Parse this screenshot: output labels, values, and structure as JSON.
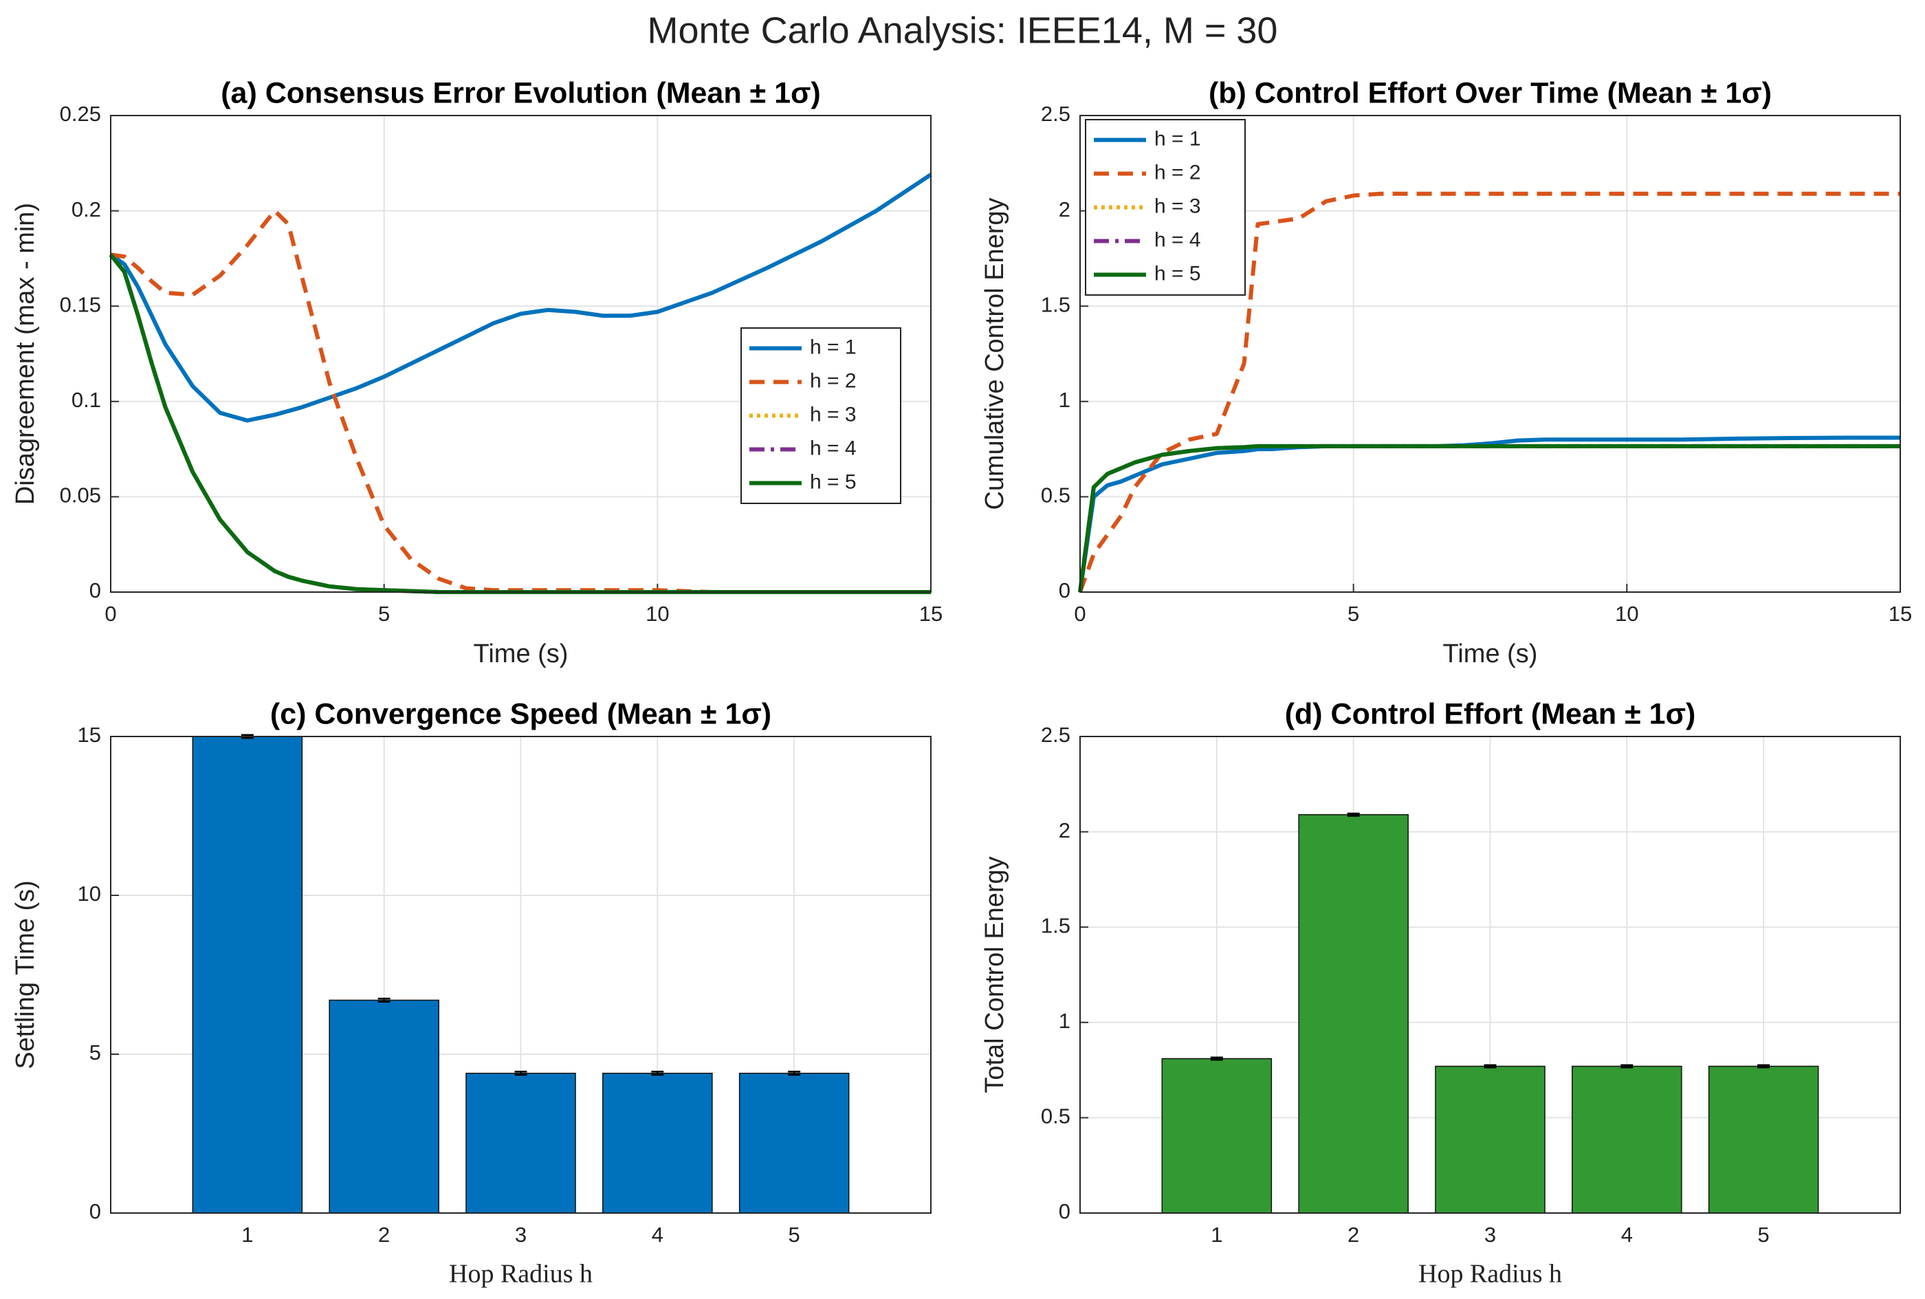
{
  "title": "Monte Carlo Analysis: IEEE14, M = 30",
  "chart_data": [
    {
      "type": "line",
      "title": "(a) Consensus Error Evolution (Mean ± 1σ)",
      "xlabel": "Time (s)",
      "ylabel": "Disagreement (max - min)",
      "x": [
        0,
        0.25,
        0.5,
        0.75,
        1,
        1.5,
        2,
        2.5,
        3,
        3.25,
        3.5,
        4,
        4.5,
        5,
        5.5,
        6,
        6.5,
        7,
        7.5,
        8,
        8.5,
        9,
        9.5,
        10,
        11,
        12,
        13,
        14,
        15
      ],
      "xlim": [
        0,
        15
      ],
      "xticks": [
        0,
        5,
        10,
        15
      ],
      "ylim": [
        0,
        0.25
      ],
      "yticks": [
        0,
        0.05,
        0.1,
        0.15,
        0.2,
        0.25
      ],
      "grid": true,
      "legend": "east",
      "series": [
        {
          "name": "h = 1",
          "color": "#0072bd",
          "style": "solid",
          "values": [
            0.177,
            0.172,
            0.16,
            0.145,
            0.13,
            0.108,
            0.094,
            0.09,
            0.093,
            0.095,
            0.097,
            0.102,
            0.107,
            0.113,
            0.12,
            0.127,
            0.134,
            0.141,
            0.146,
            0.148,
            0.147,
            0.145,
            0.145,
            0.147,
            0.157,
            0.17,
            0.184,
            0.2,
            0.219
          ]
        },
        {
          "name": "h = 2",
          "color": "#d95319",
          "style": "dashed",
          "values": [
            0.177,
            0.176,
            0.17,
            0.163,
            0.157,
            0.156,
            0.166,
            0.182,
            0.2,
            0.193,
            0.165,
            0.11,
            0.07,
            0.035,
            0.017,
            0.007,
            0.002,
            0.001,
            0.001,
            0.001,
            0.001,
            0.001,
            0.001,
            0.001,
            0,
            0,
            0,
            0,
            0
          ]
        },
        {
          "name": "h = 3",
          "color": "#edb120",
          "style": "dotted",
          "values": [
            0.177,
            0.168,
            0.145,
            0.12,
            0.097,
            0.063,
            0.038,
            0.021,
            0.011,
            0.008,
            0.006,
            0.003,
            0.0015,
            0.001,
            0.0005,
            0,
            0,
            0,
            0,
            0,
            0,
            0,
            0,
            0,
            0,
            0,
            0,
            0,
            0
          ]
        },
        {
          "name": "h = 4",
          "color": "#7e2f8e",
          "style": "dashdot",
          "values": [
            0.177,
            0.168,
            0.145,
            0.12,
            0.097,
            0.063,
            0.038,
            0.021,
            0.011,
            0.008,
            0.006,
            0.003,
            0.0015,
            0.001,
            0.0005,
            0,
            0,
            0,
            0,
            0,
            0,
            0,
            0,
            0,
            0,
            0,
            0,
            0,
            0
          ]
        },
        {
          "name": "h = 5",
          "color": "#0b6b12",
          "style": "solid",
          "values": [
            0.177,
            0.168,
            0.145,
            0.12,
            0.097,
            0.063,
            0.038,
            0.021,
            0.011,
            0.008,
            0.006,
            0.003,
            0.0015,
            0.001,
            0.0005,
            0,
            0,
            0,
            0,
            0,
            0,
            0,
            0,
            0,
            0,
            0,
            0,
            0,
            0
          ]
        }
      ]
    },
    {
      "type": "line",
      "title": "(b) Control Effort Over Time (Mean ± 1σ)",
      "xlabel": "Time (s)",
      "ylabel": "Cumulative Control Energy",
      "x": [
        0,
        0.25,
        0.5,
        0.75,
        1,
        1.5,
        2,
        2.5,
        3,
        3.25,
        3.5,
        4,
        4.5,
        5,
        5.5,
        6,
        6.5,
        7,
        7.5,
        8,
        8.5,
        9,
        9.5,
        10,
        11,
        12,
        13,
        14,
        15
      ],
      "xlim": [
        0,
        15
      ],
      "xticks": [
        0,
        5,
        10,
        15
      ],
      "ylim": [
        0,
        2.5
      ],
      "yticks": [
        0,
        0.5,
        1,
        1.5,
        2,
        2.5
      ],
      "grid": true,
      "legend": "northwest",
      "series": [
        {
          "name": "h = 1",
          "color": "#0072bd",
          "style": "solid",
          "values": [
            0,
            0.5,
            0.56,
            0.58,
            0.61,
            0.67,
            0.7,
            0.73,
            0.74,
            0.75,
            0.75,
            0.76,
            0.765,
            0.765,
            0.765,
            0.765,
            0.765,
            0.77,
            0.78,
            0.795,
            0.8,
            0.8,
            0.8,
            0.8,
            0.8,
            0.805,
            0.808,
            0.81,
            0.81
          ]
        },
        {
          "name": "h = 2",
          "color": "#d95319",
          "style": "dashed",
          "values": [
            0,
            0.2,
            0.3,
            0.4,
            0.55,
            0.73,
            0.8,
            0.83,
            1.2,
            1.93,
            1.94,
            1.96,
            2.05,
            2.08,
            2.09,
            2.09,
            2.09,
            2.09,
            2.09,
            2.09,
            2.09,
            2.09,
            2.09,
            2.09,
            2.09,
            2.09,
            2.09,
            2.09,
            2.09
          ]
        },
        {
          "name": "h = 3",
          "color": "#edb120",
          "style": "dotted",
          "values": [
            0,
            0.55,
            0.62,
            0.65,
            0.68,
            0.72,
            0.74,
            0.755,
            0.76,
            0.765,
            0.765,
            0.765,
            0.765,
            0.765,
            0.765,
            0.765,
            0.765,
            0.765,
            0.765,
            0.765,
            0.765,
            0.765,
            0.765,
            0.765,
            0.765,
            0.765,
            0.765,
            0.765,
            0.765
          ]
        },
        {
          "name": "h = 4",
          "color": "#7e2f8e",
          "style": "dashdot",
          "values": [
            0,
            0.55,
            0.62,
            0.65,
            0.68,
            0.72,
            0.74,
            0.755,
            0.76,
            0.765,
            0.765,
            0.765,
            0.765,
            0.765,
            0.765,
            0.765,
            0.765,
            0.765,
            0.765,
            0.765,
            0.765,
            0.765,
            0.765,
            0.765,
            0.765,
            0.765,
            0.765,
            0.765,
            0.765
          ]
        },
        {
          "name": "h = 5",
          "color": "#0b6b12",
          "style": "solid",
          "values": [
            0,
            0.55,
            0.62,
            0.65,
            0.68,
            0.72,
            0.74,
            0.755,
            0.76,
            0.765,
            0.765,
            0.765,
            0.765,
            0.765,
            0.765,
            0.765,
            0.765,
            0.765,
            0.765,
            0.765,
            0.765,
            0.765,
            0.765,
            0.765,
            0.765,
            0.765,
            0.765,
            0.765,
            0.765
          ]
        }
      ]
    },
    {
      "type": "bar",
      "title": "(c) Convergence Speed (Mean ± 1σ)",
      "xlabel": "Hop Radius h",
      "ylabel": "Settling Time (s)",
      "x": [
        1,
        2,
        3,
        4,
        5
      ],
      "xlim": [
        0,
        6
      ],
      "xticks": [
        1,
        2,
        3,
        4,
        5
      ],
      "ylim": [
        0,
        15
      ],
      "yticks": [
        0,
        5,
        10,
        15
      ],
      "grid": true,
      "color": "#0072bd",
      "values": [
        15,
        6.7,
        4.4,
        4.4,
        4.4
      ],
      "errors": [
        0.05,
        0.05,
        0.05,
        0.05,
        0.05
      ]
    },
    {
      "type": "bar",
      "title": "(d) Control Effort (Mean ± 1σ)",
      "xlabel": "Hop Radius h",
      "ylabel": "Total Control Energy",
      "x": [
        1,
        2,
        3,
        4,
        5
      ],
      "xlim": [
        0,
        6
      ],
      "xticks": [
        1,
        2,
        3,
        4,
        5
      ],
      "ylim": [
        0,
        2.5
      ],
      "yticks": [
        0,
        0.5,
        1,
        1.5,
        2,
        2.5
      ],
      "grid": true,
      "color": "#339933",
      "values": [
        0.81,
        2.09,
        0.77,
        0.77,
        0.77
      ],
      "errors": [
        0.006,
        0.006,
        0.006,
        0.006,
        0.006
      ]
    }
  ]
}
